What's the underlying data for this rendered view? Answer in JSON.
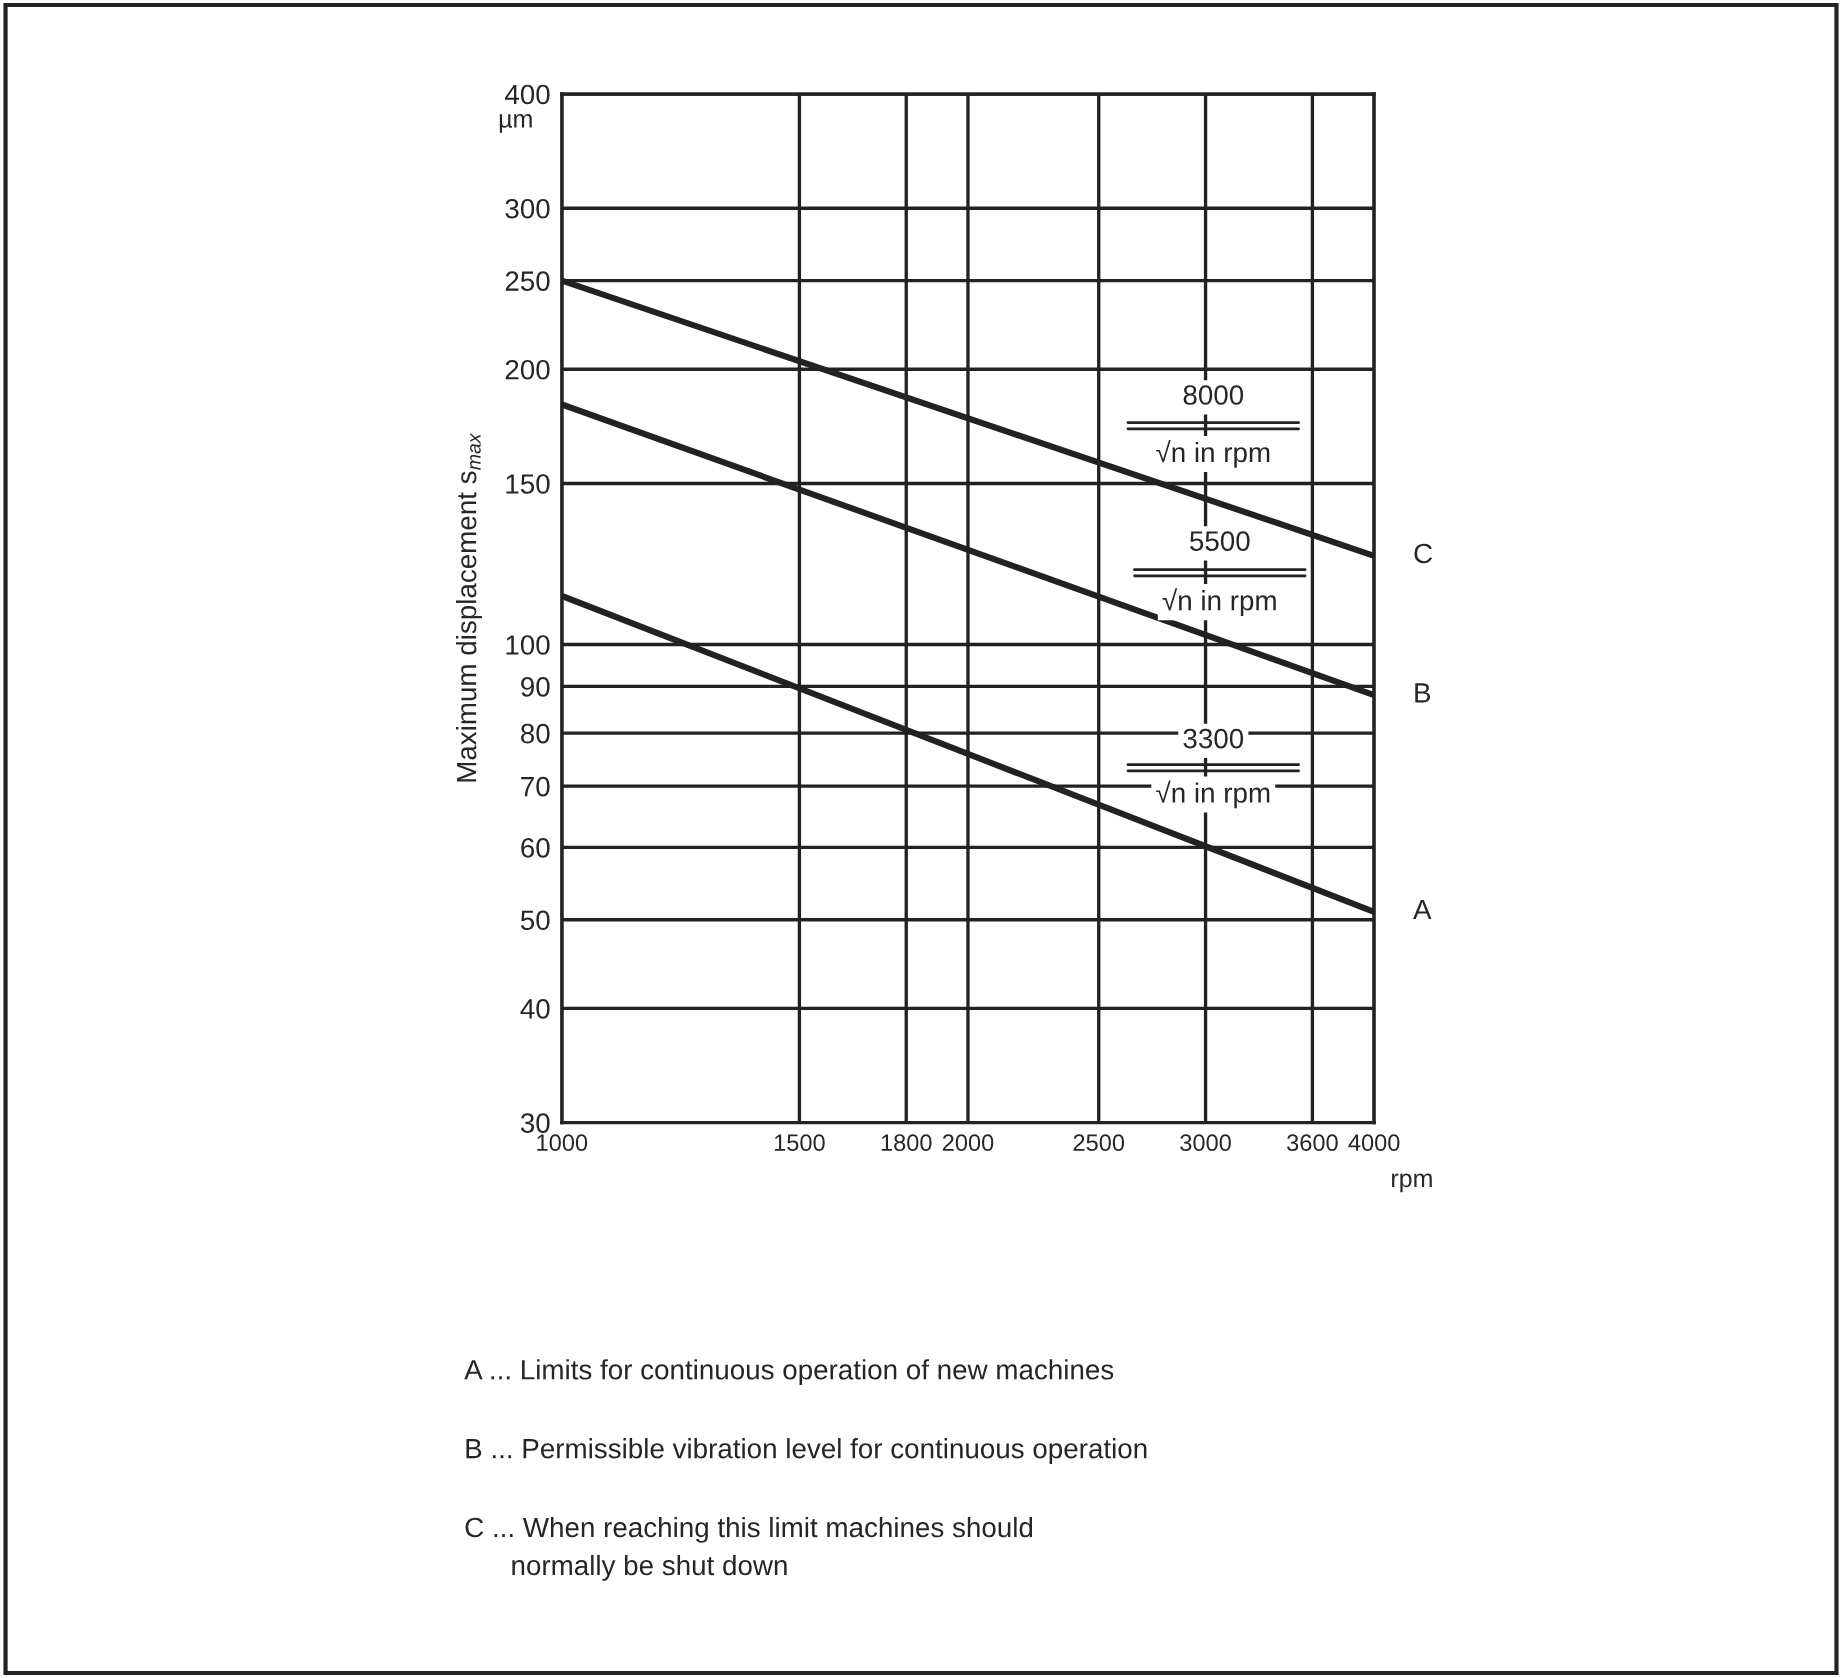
{
  "chart_data": {
    "type": "line",
    "ylabel": "Maximum displacement s$_{max}$",
    "xlabel": "rpm",
    "x": [
      1000,
      4000
    ],
    "series": [
      {
        "name": "C",
        "color": "#222222",
        "values": [
          250,
          125
        ]
      },
      {
        "name": "B",
        "color": "#222222",
        "values": [
          183,
          88
        ]
      },
      {
        "name": "A",
        "color": "#222222",
        "values": [
          113,
          51
        ]
      }
    ],
    "log": "xy",
    "xlim": [
      1000,
      4000
    ],
    "ylim": [
      30,
      400
    ],
    "xticks": [
      1000,
      1500,
      1800,
      2000,
      2500,
      3000,
      3600,
      4000
    ],
    "yticks": [
      30,
      40,
      50,
      60,
      70,
      80,
      90,
      100,
      150,
      200,
      250,
      300,
      400
    ],
    "grid": true,
    "legend": false,
    "marker": "none",
    "line_style": "solid",
    "annotations": [
      "µm",
      "A ... Limits for continuous operation of new machines",
      "B ... Permissible vibration level for continuous operation",
      "C ... When reaching this limit machines should\n      normally be shut down",
      "8000",
      "√n in rpm",
      "5500",
      "√n in rpm",
      "3300",
      "√n in rpm"
    ]
  }
}
